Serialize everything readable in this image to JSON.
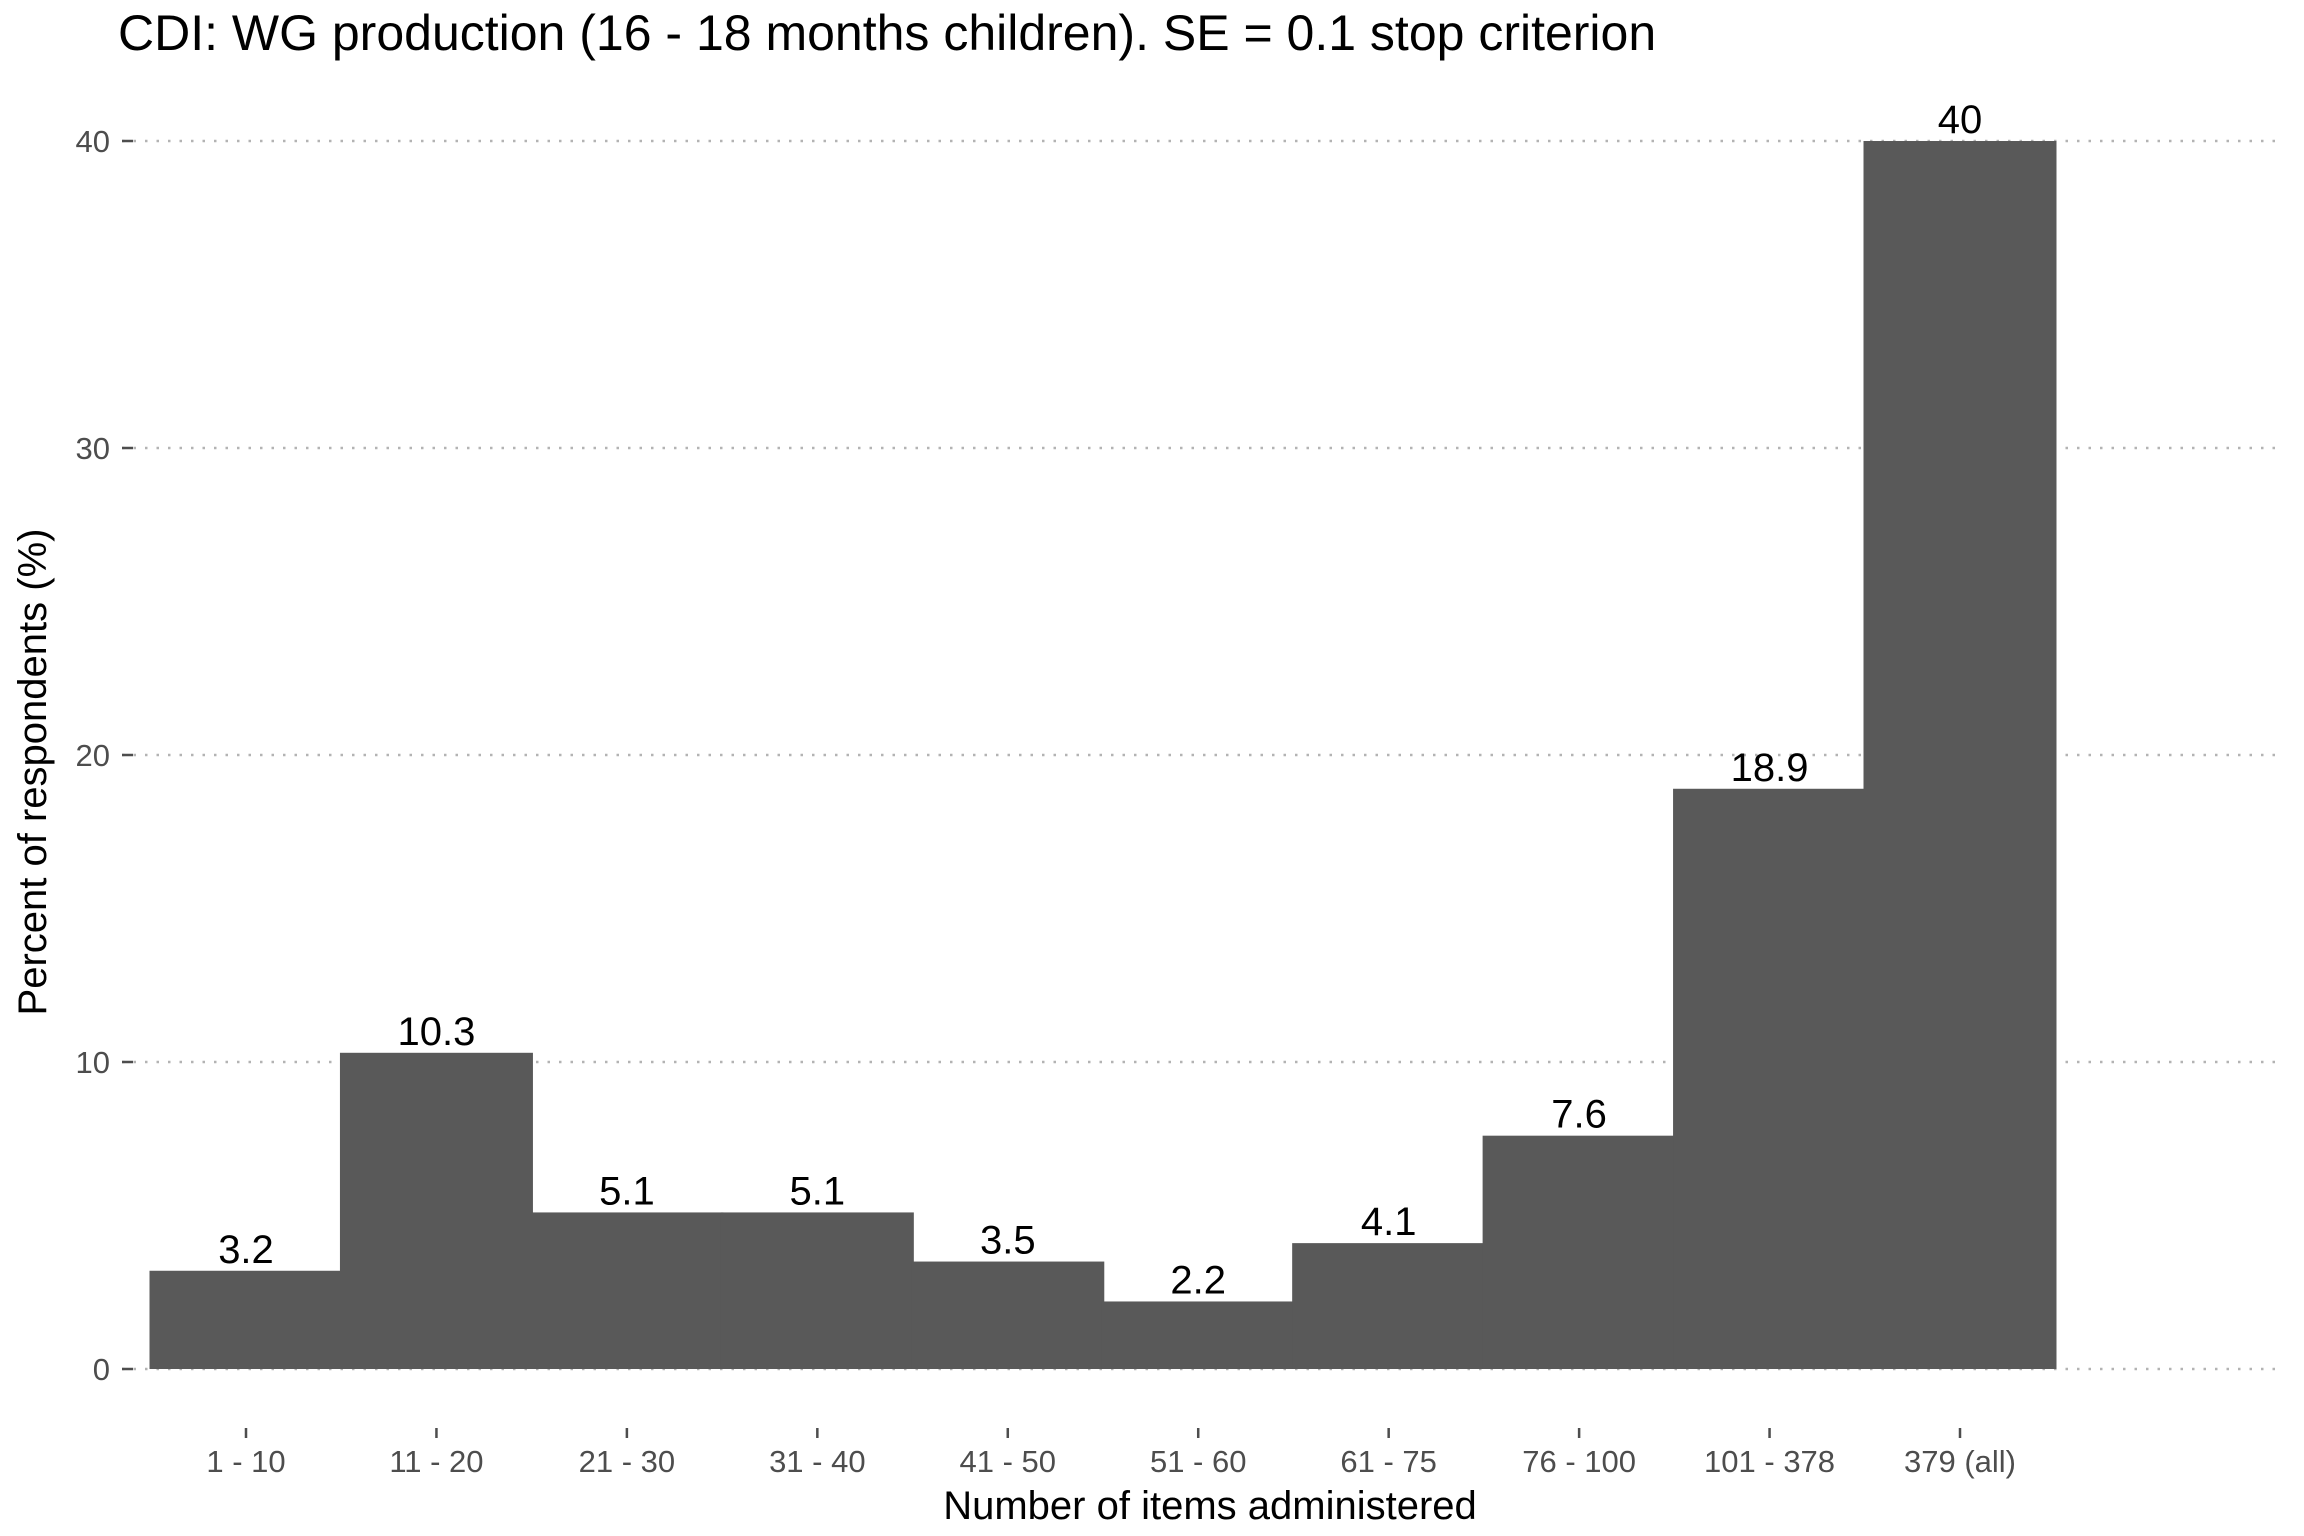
{
  "chart_data": {
    "type": "bar",
    "title": "CDI: WG production (16 - 18 months children). SE = 0.1 stop criterion",
    "xlabel": "Number of items administered",
    "ylabel": "Percent of respondents (%)",
    "categories": [
      "1 - 10",
      "11 - 20",
      "21 - 30",
      "31 - 40",
      "41 - 50",
      "51 - 60",
      "61 - 75",
      "76 - 100",
      "101 - 378",
      "379 (all)"
    ],
    "values": [
      3.2,
      10.3,
      5.1,
      5.1,
      3.5,
      2.2,
      4.1,
      7.6,
      18.9,
      40
    ],
    "value_labels": [
      "3.2",
      "10.3",
      "5.1",
      "5.1",
      "3.5",
      "2.2",
      "4.1",
      "7.6",
      "18.9",
      "40"
    ],
    "yticks": [
      0,
      10,
      20,
      30,
      40
    ],
    "ylim": [
      -1.9,
      42
    ],
    "grid": "horizontal, dotted",
    "bar_color": "#595959"
  }
}
